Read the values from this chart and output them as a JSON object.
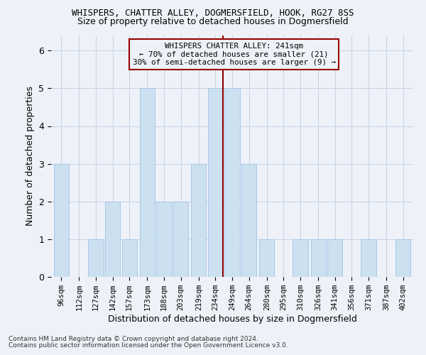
{
  "title1": "WHISPERS, CHATTER ALLEY, DOGMERSFIELD, HOOK, RG27 8SS",
  "title2": "Size of property relative to detached houses in Dogmersfield",
  "xlabel": "Distribution of detached houses by size in Dogmersfield",
  "ylabel": "Number of detached properties",
  "footnote1": "Contains HM Land Registry data © Crown copyright and database right 2024.",
  "footnote2": "Contains public sector information licensed under the Open Government Licence v3.0.",
  "annotation_line1": "WHISPERS CHATTER ALLEY: 241sqm",
  "annotation_line2": "← 70% of detached houses are smaller (21)",
  "annotation_line3": "30% of semi-detached houses are larger (9) →",
  "property_size": 241,
  "bar_color": "#cce0f0",
  "bar_edgecolor": "#a8c8e8",
  "vline_color": "#8b0000",
  "vline_x": 241,
  "categories": [
    96,
    112,
    127,
    142,
    157,
    173,
    188,
    203,
    219,
    234,
    249,
    264,
    280,
    295,
    310,
    326,
    341,
    356,
    371,
    387,
    402
  ],
  "values": [
    3,
    0,
    1,
    2,
    1,
    5,
    2,
    2,
    3,
    5,
    5,
    3,
    1,
    0,
    1,
    1,
    1,
    0,
    1,
    0,
    1
  ],
  "ylim": [
    0,
    6.4
  ],
  "yticks": [
    0,
    1,
    2,
    3,
    4,
    5,
    6
  ],
  "grid_color": "#c8d4e8",
  "background_color": "#eef2f8",
  "annotation_box_color": "#990000",
  "title1_fontsize": 9,
  "title2_fontsize": 9,
  "xlabel_fontsize": 9,
  "ylabel_fontsize": 9,
  "tick_fontsize": 7.5,
  "footnote_fontsize": 6.5
}
